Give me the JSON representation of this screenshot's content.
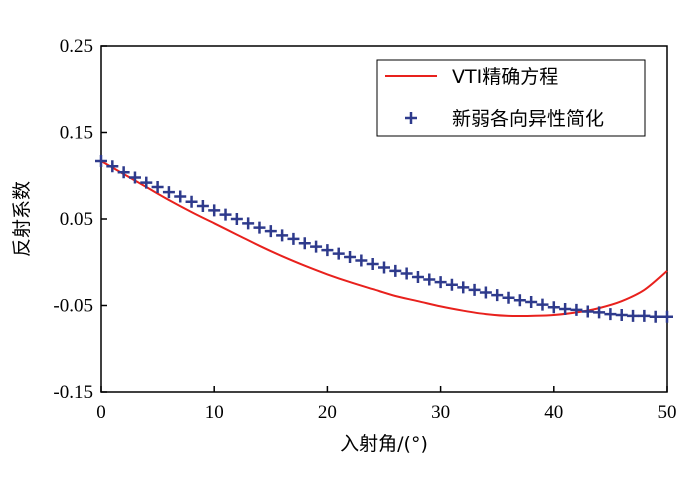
{
  "chart_data": {
    "type": "line",
    "title": "",
    "xlabel": "入射角/(°)",
    "ylabel": "反射系数",
    "xlim": [
      0,
      50
    ],
    "ylim": [
      -0.15,
      0.25
    ],
    "xticks": [
      "0",
      "10",
      "20",
      "30",
      "40",
      "50"
    ],
    "yticks": [
      "0.25",
      "0.15",
      "0.05",
      "-0.05",
      "-0.15"
    ],
    "legend_position": "top-right",
    "series": [
      {
        "name": "VTI精确方程",
        "style": "line",
        "color": "#e8211d",
        "x": [
          0,
          2,
          4,
          6,
          8,
          10,
          12,
          14,
          16,
          18,
          20,
          22,
          24,
          26,
          28,
          30,
          32,
          34,
          36,
          38,
          40,
          42,
          44,
          46,
          48,
          50
        ],
        "y": [
          0.117,
          0.102,
          0.087,
          0.072,
          0.058,
          0.045,
          0.032,
          0.019,
          0.007,
          -0.004,
          -0.014,
          -0.023,
          -0.031,
          -0.039,
          -0.045,
          -0.051,
          -0.056,
          -0.06,
          -0.062,
          -0.062,
          -0.061,
          -0.058,
          -0.053,
          -0.045,
          -0.032,
          -0.01
        ]
      },
      {
        "name": "新弱各向异性简化",
        "style": "markers",
        "marker": "plus",
        "color": "#2e3a8c",
        "x": [
          0,
          1,
          2,
          3,
          4,
          5,
          6,
          7,
          8,
          9,
          10,
          11,
          12,
          13,
          14,
          15,
          16,
          17,
          18,
          19,
          20,
          21,
          22,
          23,
          24,
          25,
          26,
          27,
          28,
          29,
          30,
          31,
          32,
          33,
          34,
          35,
          36,
          37,
          38,
          39,
          40,
          41,
          42,
          43,
          44,
          45,
          46,
          47,
          48,
          49,
          50
        ],
        "y": [
          0.117,
          0.111,
          0.104,
          0.098,
          0.092,
          0.087,
          0.081,
          0.076,
          0.07,
          0.065,
          0.06,
          0.055,
          0.05,
          0.045,
          0.04,
          0.036,
          0.031,
          0.027,
          0.022,
          0.018,
          0.014,
          0.01,
          0.006,
          0.002,
          -0.002,
          -0.006,
          -0.01,
          -0.013,
          -0.017,
          -0.02,
          -0.023,
          -0.026,
          -0.029,
          -0.032,
          -0.035,
          -0.038,
          -0.041,
          -0.044,
          -0.046,
          -0.049,
          -0.052,
          -0.054,
          -0.055,
          -0.057,
          -0.058,
          -0.06,
          -0.061,
          -0.062,
          -0.062,
          -0.063,
          -0.063
        ]
      }
    ]
  }
}
